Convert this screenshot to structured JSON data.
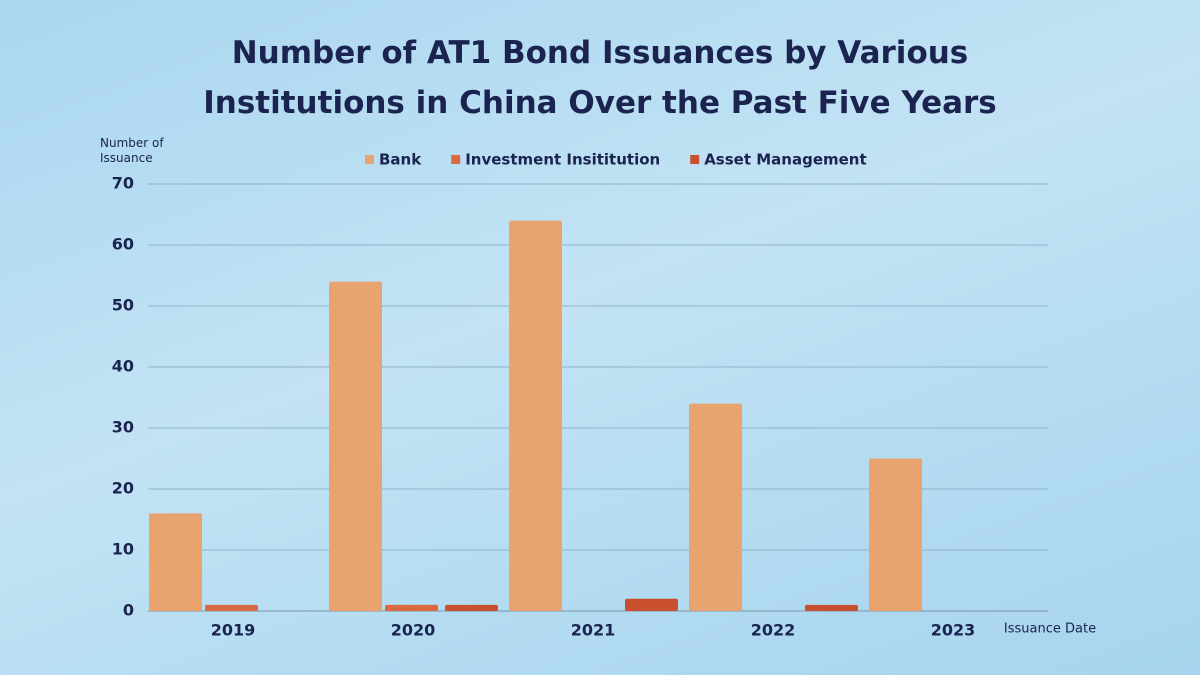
{
  "chart_data": {
    "type": "bar",
    "title": "Number of AT1 Bond Issuances by Various Institutions in China Over the Past Five Years",
    "y_label": "Number of Issuance",
    "x_label": "Issuance Date",
    "categories": [
      "2019",
      "2020",
      "2021",
      "2022",
      "2023"
    ],
    "series": [
      {
        "name": "Bank",
        "color": "#e9a36e",
        "values": [
          16,
          54,
          64,
          34,
          25
        ]
      },
      {
        "name": "Investment Insititution",
        "color": "#d9693f",
        "values": [
          1,
          1,
          0,
          0,
          0
        ]
      },
      {
        "name": "Asset Management",
        "color": "#c8502f",
        "values": [
          0,
          1,
          2,
          1,
          0
        ]
      }
    ],
    "ylim": [
      0,
      70
    ],
    "yticks": [
      0,
      10,
      20,
      30,
      40,
      50,
      60,
      70
    ],
    "grid": true
  }
}
